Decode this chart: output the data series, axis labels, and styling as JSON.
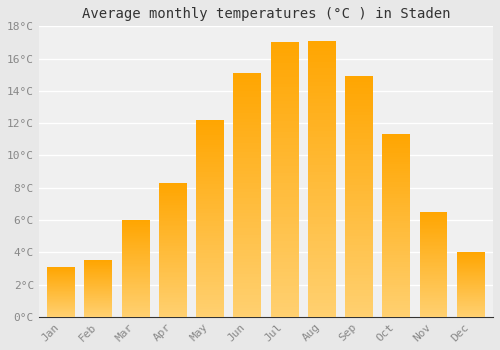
{
  "title": "Average monthly temperatures (°C ) in Staden",
  "months": [
    "Jan",
    "Feb",
    "Mar",
    "Apr",
    "May",
    "Jun",
    "Jul",
    "Aug",
    "Sep",
    "Oct",
    "Nov",
    "Dec"
  ],
  "values": [
    3.1,
    3.5,
    6.0,
    8.3,
    12.2,
    15.1,
    17.0,
    17.1,
    14.9,
    11.3,
    6.5,
    4.0
  ],
  "bar_color_top": "#FFA500",
  "bar_color_bottom": "#FFD070",
  "ylim": [
    0,
    18
  ],
  "yticks": [
    0,
    2,
    4,
    6,
    8,
    10,
    12,
    14,
    16,
    18
  ],
  "ytick_labels": [
    "0°C",
    "2°C",
    "4°C",
    "6°C",
    "8°C",
    "10°C",
    "12°C",
    "14°C",
    "16°C",
    "18°C"
  ],
  "background_color": "#e8e8e8",
  "plot_bg_color": "#f0f0f0",
  "grid_color": "#ffffff",
  "title_fontsize": 10,
  "tick_fontsize": 8,
  "tick_color": "#888888",
  "bar_width": 0.75
}
